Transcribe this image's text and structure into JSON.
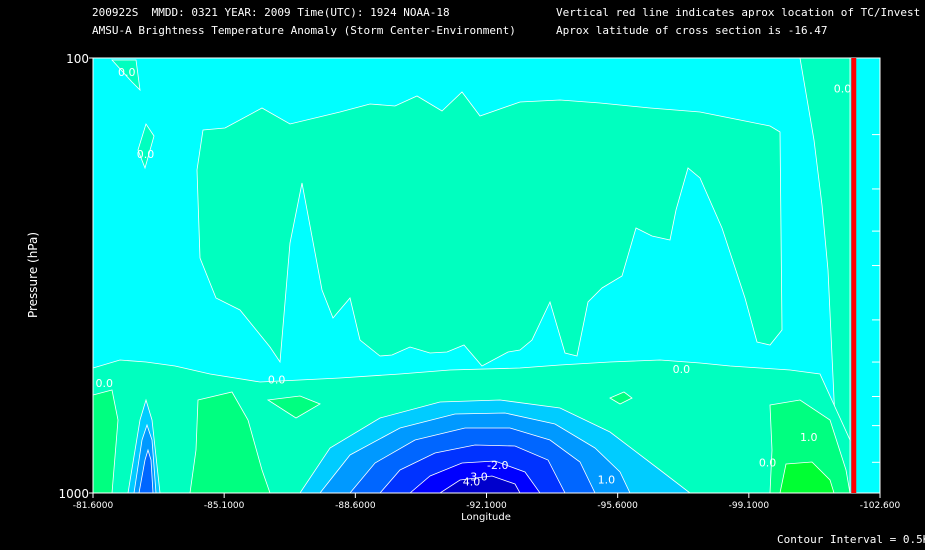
{
  "header": {
    "line1": "200922S  MMDD: 0321 YEAR: 2009 Time(UTC): 1924 NOAA-18",
    "line2": "AMSU-A Brightness Temperature Anomaly (Storm Center-Environment)",
    "line3": "Vertical red line indicates aprox location of TC/Invest",
    "line4": "Aprox latitude of cross section is -16.47"
  },
  "footer": "Contour Interval = 0.5K",
  "colors": {
    "background": "#000000",
    "cyan": "#00ffff",
    "aqua_green": "#00ffbf",
    "green": "#00ff80",
    "bright_green": "#00ff33",
    "blue_scale": [
      "#00ccff",
      "#0099ff",
      "#0066ff",
      "#0033ff",
      "#0000ff",
      "#0000cc"
    ],
    "tc_line": "#ff0000",
    "contour": "#ffffff"
  },
  "chart_data": {
    "type": "contour",
    "xlabel": "Longitude",
    "ylabel": "Pressure (hPa)",
    "xlim": [
      -81.6,
      -102.6
    ],
    "ylim": [
      1000,
      100
    ],
    "y_scale": "log",
    "x_ticks": [
      "-81.6000",
      "-85.1000",
      "-88.6000",
      "-92.1000",
      "-95.6000",
      "-99.1000",
      "-102.600"
    ],
    "x_tick_values": [
      -81.6,
      -85.1,
      -88.6,
      -92.1,
      -95.6,
      -99.1,
      -102.6
    ],
    "y_ticks": [
      "100",
      "1000"
    ],
    "y_tick_values": [
      100,
      1000
    ],
    "right_axis_ticks": [
      100,
      150,
      200,
      250,
      300,
      400,
      500,
      600,
      700,
      850,
      1000
    ],
    "contour_interval": 0.5,
    "tc_longitude": -101.9,
    "contour_labels": [
      {
        "text": "0.0",
        "lon": -82.5,
        "p": 110
      },
      {
        "text": "0.0",
        "lon": -83.0,
        "p": 170
      },
      {
        "text": "0.0",
        "lon": -101.6,
        "p": 120
      },
      {
        "text": "0.0",
        "lon": -81.9,
        "p": 570
      },
      {
        "text": "0.0",
        "lon": -86.5,
        "p": 560
      },
      {
        "text": "0.0",
        "lon": -97.3,
        "p": 530
      },
      {
        "text": "1.0",
        "lon": -100.7,
        "p": 760
      },
      {
        "text": "0.0",
        "lon": -99.6,
        "p": 870
      },
      {
        "text": "1.0",
        "lon": -95.3,
        "p": 950
      },
      {
        "text": "-2.0",
        "lon": -92.4,
        "p": 880
      },
      {
        "text": "3.0",
        "lon": -91.9,
        "p": 935
      },
      {
        "text": "4.0",
        "lon": -91.7,
        "p": 960
      }
    ]
  }
}
